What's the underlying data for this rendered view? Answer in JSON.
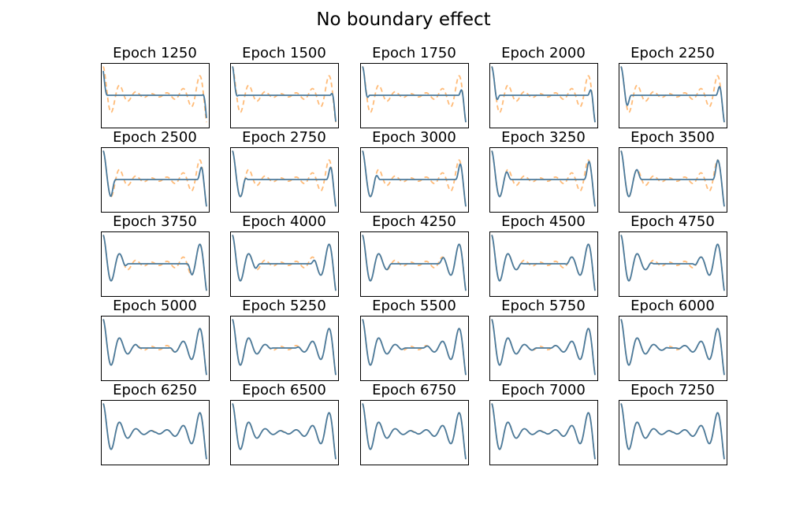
{
  "chart_data": {
    "type": "line",
    "title": "No boundary effect",
    "layout": "5x5 grid of small line plots, no axis ticks",
    "series_styles": [
      {
        "role": "target",
        "color": "#ffbb78",
        "style": "dashed"
      },
      {
        "role": "prediction",
        "color": "#4a7a9c",
        "style": "solid"
      }
    ],
    "target_curve": "oscillating signal with large-amplitude oscillations near both edges decaying to a flat center",
    "panels": [
      {
        "title": "Epoch 1250",
        "fit_left": 0.05,
        "fit_right": 0.05
      },
      {
        "title": "Epoch 1500",
        "fit_left": 0.08,
        "fit_right": 0.07
      },
      {
        "title": "Epoch 1750",
        "fit_left": 0.1,
        "fit_right": 0.1
      },
      {
        "title": "Epoch 2000",
        "fit_left": 0.12,
        "fit_right": 0.1
      },
      {
        "title": "Epoch 2250",
        "fit_left": 0.16,
        "fit_right": 0.12
      },
      {
        "title": "Epoch 2500",
        "fit_left": 0.22,
        "fit_right": 0.14
      },
      {
        "title": "Epoch 2750",
        "fit_left": 0.26,
        "fit_right": 0.14
      },
      {
        "title": "Epoch 3000",
        "fit_left": 0.3,
        "fit_right": 0.16
      },
      {
        "title": "Epoch 3250",
        "fit_left": 0.34,
        "fit_right": 0.18
      },
      {
        "title": "Epoch 3500",
        "fit_left": 0.38,
        "fit_right": 0.2
      },
      {
        "title": "Epoch 3750",
        "fit_left": 0.45,
        "fit_right": 0.35
      },
      {
        "title": "Epoch 4000",
        "fit_left": 0.5,
        "fit_right": 0.45
      },
      {
        "title": "Epoch 4250",
        "fit_left": 0.55,
        "fit_right": 0.5
      },
      {
        "title": "Epoch 4500",
        "fit_left": 0.58,
        "fit_right": 0.55
      },
      {
        "title": "Epoch 4750",
        "fit_left": 0.6,
        "fit_right": 0.58
      },
      {
        "title": "Epoch 5000",
        "fit_left": 0.7,
        "fit_right": 0.7
      },
      {
        "title": "Epoch 5250",
        "fit_left": 0.75,
        "fit_right": 0.75
      },
      {
        "title": "Epoch 5500",
        "fit_left": 0.8,
        "fit_right": 0.8
      },
      {
        "title": "Epoch 5750",
        "fit_left": 0.85,
        "fit_right": 0.85
      },
      {
        "title": "Epoch 6000",
        "fit_left": 0.9,
        "fit_right": 0.9
      },
      {
        "title": "Epoch 6250",
        "fit_left": 1.0,
        "fit_right": 1.0
      },
      {
        "title": "Epoch 6500",
        "fit_left": 1.0,
        "fit_right": 1.0
      },
      {
        "title": "Epoch 6750",
        "fit_left": 1.0,
        "fit_right": 1.0
      },
      {
        "title": "Epoch 7000",
        "fit_left": 1.0,
        "fit_right": 1.0
      },
      {
        "title": "Epoch 7250",
        "fit_left": 1.0,
        "fit_right": 1.0
      }
    ]
  }
}
